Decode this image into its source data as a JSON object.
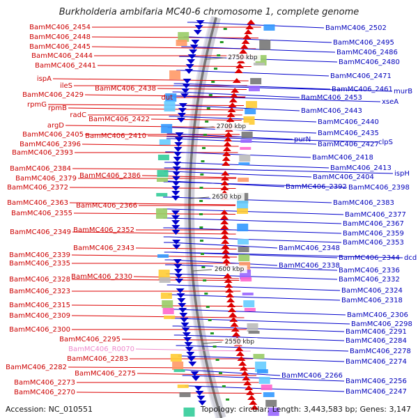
{
  "title": "Burkholderia ambifaria MC40-6 chromosome 1, complete genome",
  "footer": {
    "accession": "Accession: NC_010551",
    "topology": "Topology: circular; Length: 3,443,583 bp; Genes: 3,147"
  },
  "colors": {
    "forward_genes": "#dd0000",
    "reverse_genes": "#0000cc",
    "rna_gene": "#ee88cc",
    "backbone": "#777777"
  },
  "ticks": [
    "2750 kbp",
    "2700 kbp",
    "2650 kbp",
    "2600 kbp",
    "2550 kbp"
  ],
  "left_labels": [
    "BamMC406_2454",
    "BamMC406_2448",
    "BamMC406_2445",
    "BamMC406_2444",
    "BamMC406_2441",
    "ispA",
    "ileS",
    "BamMC406_2438",
    "BamMC406_2429",
    "dut",
    "rpmG",
    "rpmB",
    "radC",
    "BamMC406_2422",
    "argD",
    "BamMC406_2405",
    "BamMC406_2410",
    "BamMC406_2396",
    "BamMC406_2393",
    "BamMC406_2384",
    "BamMC406_2386",
    "BamMC406_2379",
    "BamMC406_2372",
    "BamMC406_2363",
    "BamMC406_2366",
    "BamMC406_2355",
    "BamMC406_2349",
    "BamMC406_2352",
    "BamMC406_2343",
    "BamMC406_2339",
    "BamMC406_2335",
    "BamMC406_2328",
    "BamMC406_2330",
    "BamMC406_2323",
    "BamMC406_2315",
    "BamMC406_2309",
    "BamMC406_2300",
    "BamMC406_2295",
    "BamMC406_R0070",
    "BamMC406_2283",
    "BamMC406_2282",
    "BamMC406_2275",
    "BamMC406_2273",
    "BamMC406_2270"
  ],
  "right_labels": [
    "BamMC406_2502",
    "BamMC406_2495",
    "BamMC406_2486",
    "BamMC406_2480",
    "BamMC406_2471",
    "BamMC406_2461",
    "murB",
    "BamMC406_2453",
    "xseA",
    "BamMC406_2443",
    "BamMC406_2440",
    "BamMC406_2435",
    "purN",
    "BamMC406_2427",
    "clpS",
    "BamMC406_2418",
    "BamMC406_2413",
    "ispH",
    "BamMC406_2404",
    "BamMC406_2392",
    "BamMC406_2398",
    "BamMC406_2383",
    "BamMC406_2377",
    "BamMC406_2367",
    "BamMC406_2359",
    "BamMC406_2353",
    "BamMC406_2348",
    "BamMC406_2344",
    "dcd",
    "BamMC406_2338",
    "BamMC406_2336",
    "BamMC406_2332",
    "BamMC406_2324",
    "BamMC406_2318",
    "BamMC406_2306",
    "BamMC406_2298",
    "BamMC406_2291",
    "BamMC406_2284",
    "BamMC406_2278",
    "BamMC406_2274",
    "BamMC406_2266",
    "BamMC406_2256",
    "BamMC406_2247"
  ]
}
